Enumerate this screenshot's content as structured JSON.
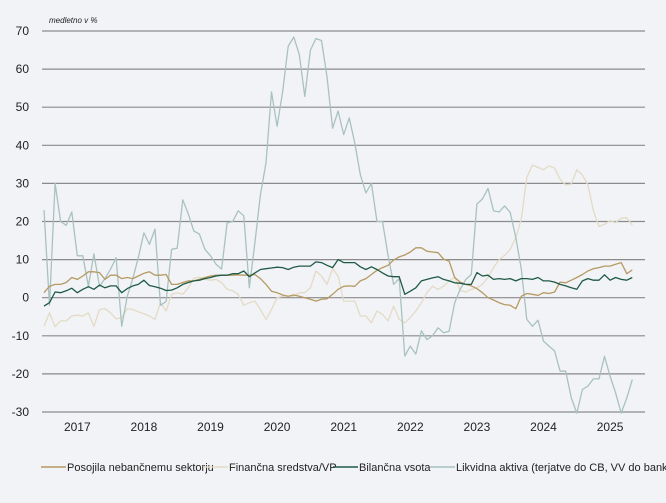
{
  "chart_data": {
    "type": "line",
    "unit_label": "medletno v %",
    "x_start": "2017-01",
    "frequency": "monthly",
    "x_ticks": [
      "2017",
      "2018",
      "2019",
      "2020",
      "2021",
      "2022",
      "2023",
      "2024",
      "2025"
    ],
    "ylim": [
      -30,
      70
    ],
    "y_ticks": [
      "70",
      "60",
      "50",
      "40",
      "30",
      "20",
      "10",
      "0",
      "-10",
      "-20",
      "-30"
    ],
    "y_tick_values": [
      70,
      60,
      50,
      40,
      30,
      20,
      10,
      0,
      -10,
      -20,
      -30
    ],
    "grid": true,
    "legend_position": "bottom",
    "series": [
      {
        "name": "Posojila nebančnemu sektorju",
        "color": "#b59a62",
        "values": [
          1.3,
          3,
          3.5,
          3.5,
          4,
          5.3,
          4.8,
          5.7,
          6.8,
          6.8,
          6.6,
          4.8,
          5.9,
          5.9,
          5,
          5.3,
          5,
          5.7,
          6.4,
          6.8,
          5.9,
          5.9,
          6.1,
          3.5,
          3.5,
          4,
          4.4,
          4.4,
          4.8,
          5.3,
          5.7,
          5.9,
          5.9,
          5.9,
          5.9,
          6,
          5.9,
          5.9,
          6.1,
          5,
          3.5,
          1.7,
          1.3,
          0.7,
          0.4,
          0.7,
          0.4,
          0,
          -0.4,
          -0.9,
          -0.4,
          -0.3,
          0.9,
          2.2,
          3,
          3.1,
          3,
          4.4,
          5,
          6.1,
          7.2,
          7.9,
          8.5,
          9.9,
          10.7,
          11.2,
          12,
          13.1,
          13.1,
          12.2,
          12,
          11.8,
          10.1,
          9.6,
          5.3,
          4.1,
          3.5,
          3.1,
          2.4,
          1.3,
          0,
          -0.6,
          -1.3,
          -1.8,
          -2,
          -2.9,
          0.4,
          1.1,
          0.9,
          0.6,
          1.3,
          1.1,
          1.5,
          4.1,
          3.9,
          4.6,
          5.3,
          6.1,
          7,
          7.6,
          7.9,
          8.3,
          8.3,
          8.8,
          9.2,
          6.3,
          7.3
        ]
      },
      {
        "name": "Finančna sredstva/VP",
        "color": "#e3dbc6",
        "values": [
          -7.5,
          -4,
          -7.6,
          -6.1,
          -6.1,
          -4.8,
          -4.6,
          -4.8,
          -4,
          -7.5,
          -3.1,
          -2.9,
          -4,
          -5.5,
          -5.3,
          -2.9,
          -3.1,
          -3.7,
          -4.2,
          -4.8,
          -5.7,
          -1.3,
          -3.5,
          0.9,
          1.3,
          0.9,
          2.6,
          5.1,
          5.4,
          4.8,
          4.6,
          4.8,
          4,
          2.2,
          1.8,
          0.9,
          -2,
          -1.3,
          -0.9,
          -3.1,
          -5.7,
          -3.1,
          0,
          0.4,
          0.4,
          0.4,
          1.3,
          1.3,
          2.6,
          7,
          5.7,
          3.5,
          7.6,
          5.7,
          -0.9,
          -0.9,
          -0.9,
          -4.8,
          -4.8,
          -6.6,
          -3.5,
          -4.4,
          -6.1,
          -2.2,
          -5.7,
          -6.6,
          -5.2,
          -3.5,
          -1.3,
          1.3,
          3,
          2.2,
          3,
          4.4,
          5.3,
          1.9,
          1.5,
          2.2,
          2.6,
          3.5,
          5.3,
          7.9,
          10,
          11.1,
          12.7,
          15.8,
          20.6,
          31.6,
          34.8,
          34.2,
          33.6,
          34.6,
          34,
          31.1,
          29.6,
          29.8,
          33.6,
          32.2,
          29.6,
          22.8,
          18.7,
          19.3,
          20.2,
          19.7,
          20.9,
          21,
          19
        ]
      },
      {
        "name": "Bilančna vsota",
        "color": "#1e5a44",
        "values": [
          -2.2,
          -1.3,
          1.5,
          1.3,
          1.8,
          2.5,
          1.3,
          2.2,
          2.9,
          2.2,
          3.3,
          2.6,
          3.1,
          3.1,
          1.3,
          2.4,
          3.1,
          3.5,
          4.6,
          3.2,
          2.9,
          2.5,
          1.9,
          2,
          2.6,
          3.5,
          4,
          4.4,
          4.6,
          5,
          5.3,
          5.7,
          5.9,
          5.9,
          6.3,
          6.3,
          7,
          5.5,
          6.5,
          7.4,
          7.6,
          7.8,
          8,
          7.9,
          7.4,
          8,
          8.3,
          8.3,
          8.3,
          9.4,
          9.2,
          8.5,
          7.9,
          10,
          9.2,
          9.2,
          9.2,
          8.1,
          7.4,
          8.1,
          7.4,
          6.5,
          5.7,
          5.5,
          5.5,
          0.9,
          1.7,
          2.6,
          4.4,
          4.8,
          5.2,
          5.5,
          4.8,
          4.4,
          3.9,
          3.8,
          3.5,
          3.5,
          6.6,
          5.7,
          5.9,
          4.8,
          5,
          4.8,
          5,
          4.4,
          5,
          5,
          4.8,
          5.3,
          4.4,
          4.4,
          4.1,
          3.5,
          3.1,
          2.6,
          2.2,
          4.4,
          5,
          4.6,
          4.6,
          6,
          4.6,
          5.3,
          4.8,
          4.6,
          5.3
        ]
      },
      {
        "name": "Likvidna aktiva (terjatve do CB, VV do bank)",
        "color": "#a8c2bf",
        "values": [
          23,
          -2,
          30,
          20,
          19,
          22.5,
          11,
          11,
          3,
          11.5,
          3,
          5,
          7.5,
          10.5,
          -7.5,
          0.4,
          5,
          10.5,
          17,
          14,
          18,
          -2,
          -1,
          12.7,
          13,
          25.7,
          22,
          17.5,
          16.7,
          12.7,
          11,
          8.8,
          7.5,
          19.6,
          20,
          22.8,
          21.5,
          2.6,
          14.4,
          27,
          35.4,
          54,
          45,
          54,
          66,
          68.4,
          63.8,
          52.8,
          65,
          68,
          67.5,
          58,
          44.5,
          49,
          42.8,
          47.2,
          40.6,
          32.3,
          27.5,
          30,
          20,
          20,
          11,
          3.5,
          5,
          -15.3,
          -12.7,
          -14.8,
          -8.7,
          -11,
          -10,
          -7.9,
          -9.2,
          -8.8,
          -1.3,
          2.2,
          4.8,
          6.1,
          24.6,
          25.9,
          28.7,
          22.8,
          22.5,
          24.1,
          22.4,
          15.8,
          7.5,
          -5.7,
          -7.5,
          -5.9,
          -11.4,
          -12.7,
          -14,
          -19.3,
          -19.3,
          -26.3,
          -30.3,
          -24.1,
          -23.2,
          -21.3,
          -21.3,
          -15.4,
          -20.6,
          -25,
          -30.3,
          -26.3,
          -21.5
        ]
      }
    ]
  }
}
